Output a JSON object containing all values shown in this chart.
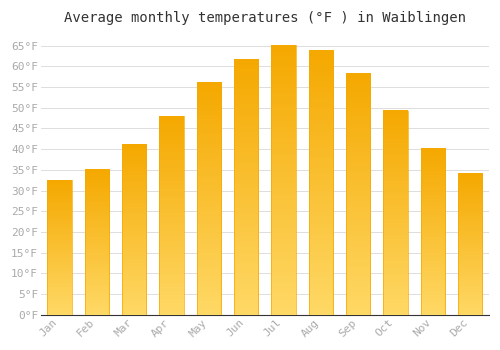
{
  "months": [
    "Jan",
    "Feb",
    "Mar",
    "Apr",
    "May",
    "Jun",
    "Jul",
    "Aug",
    "Sep",
    "Oct",
    "Nov",
    "Dec"
  ],
  "values": [
    32.5,
    35.2,
    41.2,
    48.0,
    56.1,
    61.7,
    65.1,
    63.9,
    58.3,
    49.3,
    40.3,
    34.3
  ],
  "bar_color_top": "#F5A800",
  "bar_color_bottom": "#FFD966",
  "background_color": "#FFFFFF",
  "plot_bg_color": "#FFFFFF",
  "grid_color": "#DDDDDD",
  "title": "Average monthly temperatures (°F ) in Waiblingen",
  "title_fontsize": 10,
  "title_color": "#333333",
  "tick_label_color": "#AAAAAA",
  "tick_fontsize": 8,
  "ylim": [
    0,
    68
  ],
  "yticks": [
    0,
    5,
    10,
    15,
    20,
    25,
    30,
    35,
    40,
    45,
    50,
    55,
    60,
    65
  ]
}
